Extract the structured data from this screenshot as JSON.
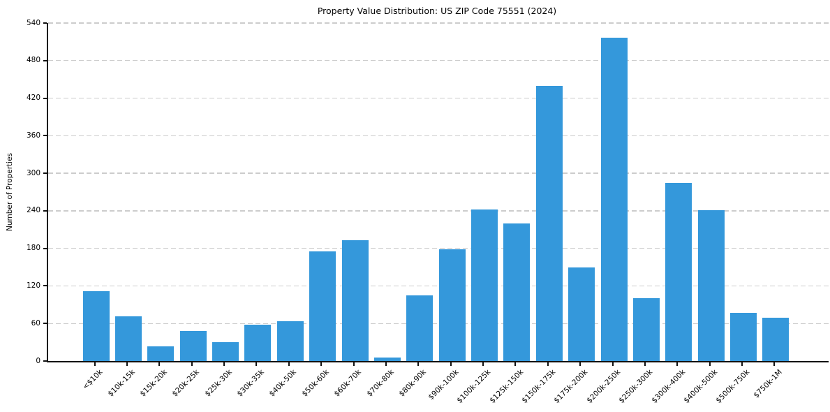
{
  "chart_data": {
    "type": "bar",
    "title": "Property Value Distribution: US ZIP Code 75551 (2024)",
    "xlabel": "",
    "ylabel": "Number of Properties",
    "categories": [
      "<$10k",
      "$10k-15k",
      "$15k-20k",
      "$20k-25k",
      "$25k-30k",
      "$30k-35k",
      "$40k-50k",
      "$50k-60k",
      "$60k-70k",
      "$70k-80k",
      "$80k-90k",
      "$90k-100k",
      "$100k-125k",
      "$125k-150k",
      "$150k-175k",
      "$175k-200k",
      "$200k-250k",
      "$250k-300k",
      "$300k-400k",
      "$400k-500k",
      "$500k-750k",
      "$750k-1M"
    ],
    "values": [
      112,
      71,
      23,
      48,
      30,
      58,
      64,
      175,
      193,
      6,
      105,
      178,
      242,
      220,
      440,
      149,
      517,
      100,
      285,
      241,
      77,
      69
    ],
    "ylim": [
      0,
      540
    ],
    "yticks": [
      0,
      60,
      120,
      180,
      240,
      300,
      360,
      420,
      480,
      540
    ],
    "grid": "horizontal-dashed",
    "legend": "none",
    "bar_color": "#3498db",
    "gridline_color": "#cccccc",
    "axis_color": "#111111",
    "text_color": "#000000"
  }
}
